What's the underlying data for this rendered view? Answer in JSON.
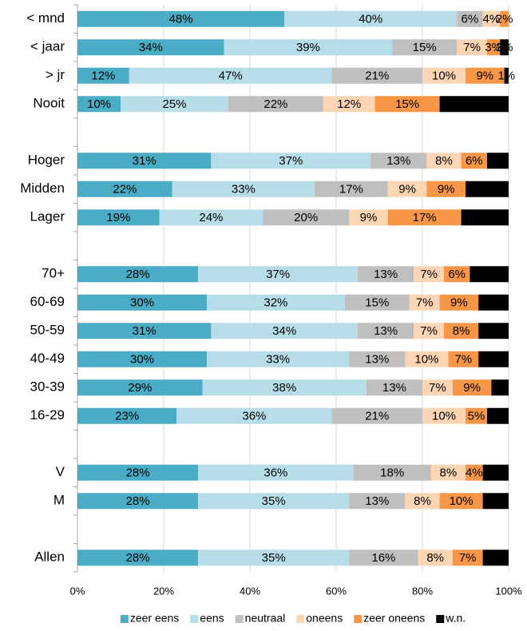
{
  "chart_data": {
    "type": "stacked_bar_horizontal",
    "categories": [
      "< mnd",
      "< jaar",
      "> jr",
      "Nooit",
      null,
      "Hoger",
      "Midden",
      "Lager",
      null,
      "70+",
      "60-69",
      "50-59",
      "40-49",
      "30-39",
      "16-29",
      null,
      "V",
      "M",
      null,
      "Allen"
    ],
    "series": [
      {
        "name": "zeer eens",
        "color": "#4BACC6",
        "values": [
          48,
          34,
          12,
          10,
          null,
          31,
          22,
          19,
          null,
          28,
          30,
          31,
          30,
          29,
          23,
          null,
          28,
          28,
          null,
          28
        ],
        "value_labels": [
          "48%",
          "34%",
          "12%",
          "10%",
          null,
          "31%",
          "22%",
          "19%",
          null,
          "28%",
          "30%",
          "31%",
          "30%",
          "29%",
          "23%",
          null,
          "28%",
          "28%",
          null,
          "28%"
        ]
      },
      {
        "name": "eens",
        "color": "#B7DEE8",
        "values": [
          40,
          39,
          47,
          25,
          null,
          37,
          33,
          24,
          null,
          37,
          32,
          34,
          33,
          38,
          36,
          null,
          36,
          35,
          null,
          35
        ],
        "value_labels": [
          "40%",
          "39%",
          "47%",
          "25%",
          null,
          "37%",
          "33%",
          "24%",
          null,
          "37%",
          "32%",
          "34%",
          "33%",
          "38%",
          "36%",
          null,
          "36%",
          "35%",
          null,
          "35%"
        ]
      },
      {
        "name": "neutraal",
        "color": "#BFBFBF",
        "values": [
          6,
          15,
          21,
          22,
          null,
          13,
          17,
          20,
          null,
          13,
          15,
          13,
          13,
          13,
          21,
          null,
          18,
          13,
          null,
          16
        ],
        "value_labels": [
          "6%",
          "15%",
          "21%",
          "22%",
          null,
          "13%",
          "17%",
          "20%",
          null,
          "13%",
          "15%",
          "13%",
          "13%",
          "13%",
          "21%",
          null,
          "18%",
          "13%",
          null,
          "16%"
        ]
      },
      {
        "name": "oneens",
        "color": "#FCD5B5",
        "values": [
          4,
          7,
          10,
          12,
          null,
          8,
          9,
          9,
          null,
          7,
          7,
          7,
          10,
          7,
          10,
          null,
          8,
          8,
          null,
          8
        ],
        "value_labels": [
          "4%",
          "7%",
          "10%",
          "12%",
          null,
          "8%",
          "9%",
          "9%",
          null,
          "7%",
          "7%",
          "7%",
          "10%",
          "7%",
          "10%",
          null,
          "8%",
          "8%",
          null,
          "8%"
        ]
      },
      {
        "name": "zeer oneens",
        "color": "#F79646",
        "values": [
          2,
          3,
          9,
          15,
          null,
          6,
          9,
          17,
          null,
          6,
          9,
          8,
          7,
          9,
          5,
          null,
          4,
          10,
          null,
          7
        ],
        "value_labels": [
          "2%",
          "3%",
          "9%",
          "15%",
          null,
          "6%",
          "9%",
          "17%",
          null,
          "6%",
          "9%",
          "8%",
          "7%",
          "9%",
          "5%",
          null,
          "4%",
          "10%",
          null,
          "7%"
        ]
      },
      {
        "name": "w.n.",
        "color": "#000000",
        "values": [
          0,
          2,
          1,
          16,
          null,
          5,
          10,
          11,
          null,
          9,
          7,
          7,
          7,
          4,
          5,
          null,
          6,
          6,
          null,
          6
        ],
        "value_labels": [
          null,
          "2%",
          "1%",
          "16%",
          null,
          "5%",
          "10%",
          "11%",
          null,
          "9%",
          "7%",
          "7%",
          "7%",
          "4%",
          "5%",
          null,
          "6%",
          "6%",
          null,
          "6%"
        ]
      }
    ],
    "xlim": [
      0,
      100
    ],
    "xticks": [
      {
        "value": 0,
        "label": "0%"
      },
      {
        "value": 20,
        "label": "20%"
      },
      {
        "value": 40,
        "label": "40%"
      },
      {
        "value": 60,
        "label": "60%"
      },
      {
        "value": 80,
        "label": "80%"
      },
      {
        "value": 100,
        "label": "100%"
      }
    ],
    "grid": true,
    "legend": "bottom"
  }
}
